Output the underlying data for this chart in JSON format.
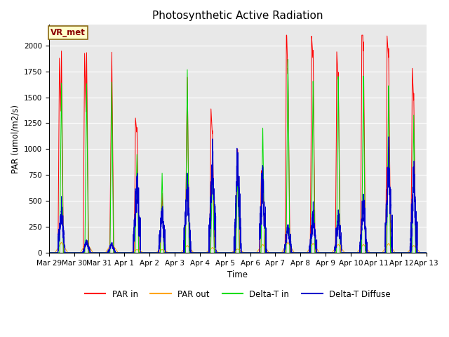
{
  "title": "Photosynthetic Active Radiation",
  "ylabel": "PAR (umol/m2/s)",
  "xlabel": "Time",
  "annotation": "VR_met",
  "ylim": [
    0,
    2200
  ],
  "bg_color": "#e8e8e8",
  "legend": [
    "PAR in",
    "PAR out",
    "Delta-T in",
    "Delta-T Diffuse"
  ],
  "legend_colors": [
    "#ff0000",
    "#ffa500",
    "#00cc00",
    "#0000cc"
  ],
  "xtick_labels": [
    "Mar 29",
    "Mar 30",
    "Mar 31",
    "Apr 1",
    "Apr 2",
    "Apr 3",
    "Apr 4",
    "Apr 5",
    "Apr 6",
    "Apr 7",
    "Apr 8",
    "Apr 9",
    "Apr 10",
    "Apr 11",
    "Apr 12",
    "Apr 13"
  ],
  "title_fontsize": 11,
  "par_in_peaks": [
    1950,
    1940,
    1950,
    1220,
    580,
    1720,
    1200,
    1020,
    780,
    1810,
    1980,
    1760,
    2050,
    1980,
    1540
  ],
  "green_peaks": [
    1640,
    1640,
    1660,
    960,
    780,
    1800,
    870,
    780,
    1230,
    1900,
    1680,
    1720,
    1720,
    1620,
    1330
  ],
  "orange_peaks": [
    100,
    100,
    90,
    30,
    30,
    70,
    50,
    35,
    80,
    100,
    90,
    80,
    80,
    90,
    70
  ],
  "blue_peaks": [
    400,
    110,
    90,
    700,
    400,
    640,
    860,
    820,
    700,
    240,
    360,
    310,
    460,
    880,
    740
  ],
  "par_in_peaks2": [
    1880,
    1930,
    0,
    1000,
    0,
    0,
    1100,
    0,
    600,
    1750,
    1600,
    1500,
    1860,
    1600,
    1400
  ],
  "n_days": 15,
  "pts_per_day": 288
}
